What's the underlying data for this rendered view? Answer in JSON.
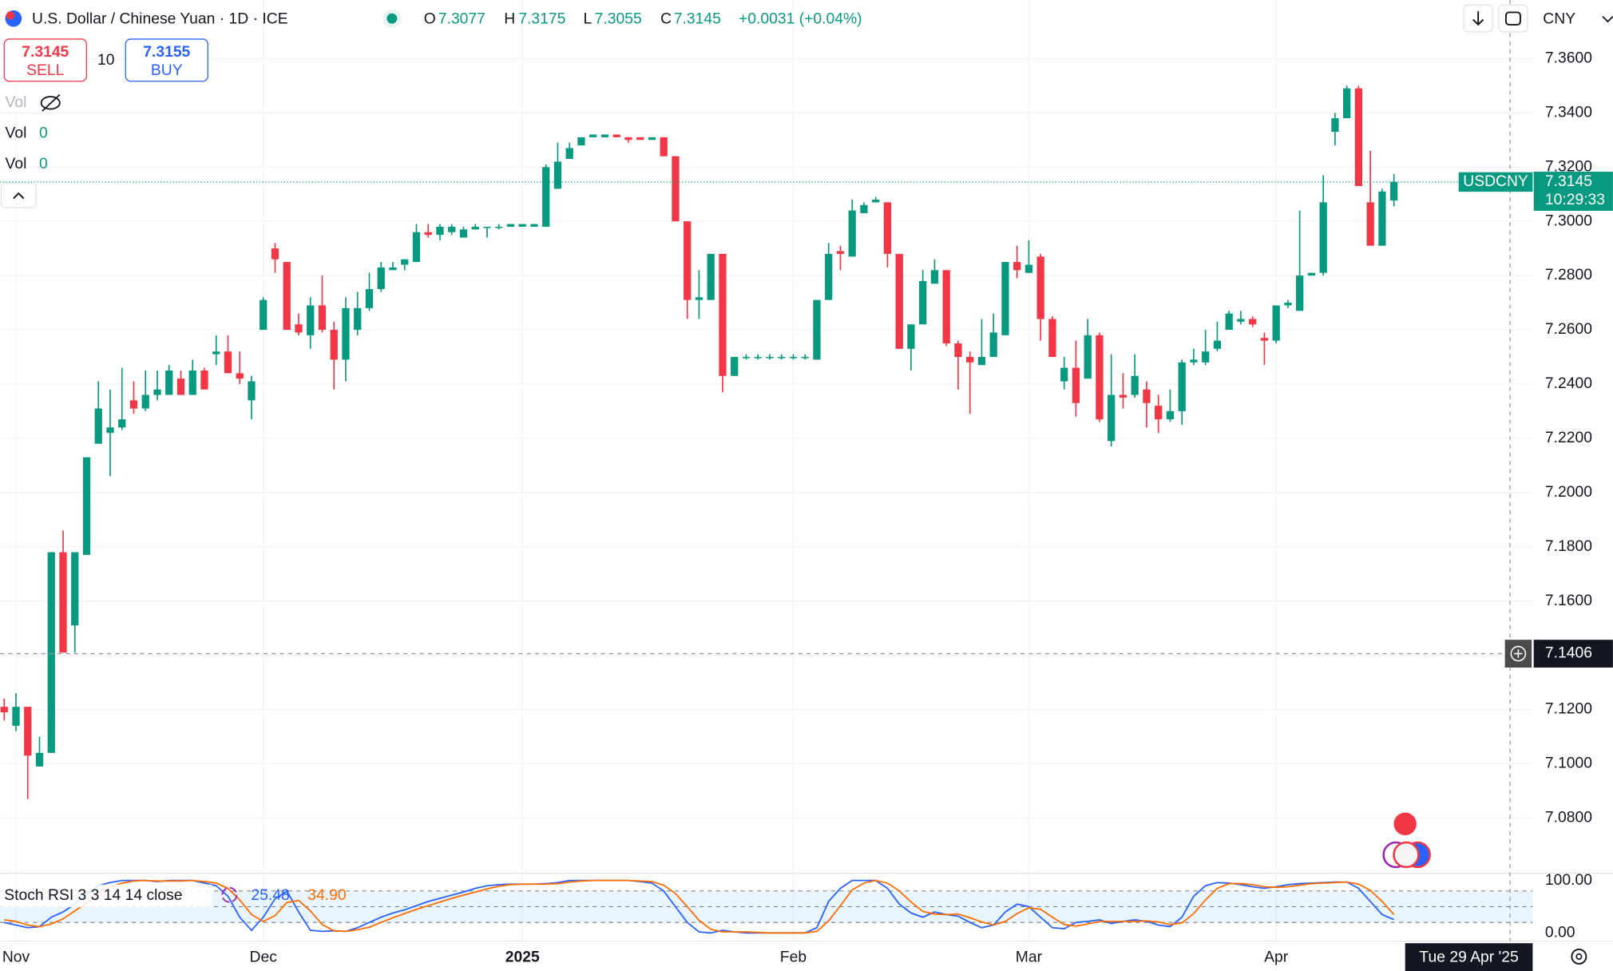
{
  "header": {
    "title": "U.S. Dollar / Chinese Yuan · 1D · ICE",
    "ohlc_labels": [
      "O",
      "H",
      "L",
      "C"
    ],
    "change": "+0.0031 (+0.04%)",
    "currency": "CNY",
    "sell_label": "SELL",
    "buy_label": "BUY",
    "buy_price": 7.3155,
    "quantity": 10,
    "symbol": "USDCNY",
    "countdown": "10:29:33",
    "crosshair_price": 7.1406,
    "crosshair_date": "Tue 29 Apr '25",
    "indicators": [
      {
        "name": "Vol"
      },
      {
        "name": "Vol",
        "value": 0
      },
      {
        "name": "Vol",
        "value": 0
      }
    ]
  },
  "chart_data": [
    {
      "type": "candlestick",
      "up_color": "#089981",
      "down_color": "#f23645",
      "grid": true,
      "categories": [
        null,
        "Nov",
        null,
        null,
        null,
        null,
        null,
        null,
        null,
        null,
        null,
        null,
        null,
        null,
        null,
        null,
        null,
        null,
        null,
        null,
        null,
        null,
        "Dec",
        null,
        null,
        null,
        null,
        null,
        null,
        null,
        null,
        null,
        null,
        null,
        null,
        null,
        null,
        null,
        null,
        null,
        null,
        null,
        null,
        null,
        "2025",
        null,
        null,
        null,
        null,
        null,
        null,
        null,
        null,
        null,
        null,
        null,
        null,
        null,
        null,
        null,
        null,
        null,
        null,
        null,
        null,
        null,
        null,
        "Feb",
        null,
        null,
        null,
        null,
        null,
        null,
        null,
        null,
        null,
        null,
        null,
        null,
        null,
        null,
        null,
        null,
        null,
        null,
        null,
        "Mar",
        null,
        null,
        null,
        null,
        null,
        null,
        null,
        null,
        null,
        null,
        null,
        null,
        null,
        null,
        null,
        null,
        null,
        null,
        null,
        null,
        "Apr",
        null,
        null,
        null,
        null,
        null,
        null,
        null,
        null,
        null,
        null
      ],
      "ohlc": [
        [
          7.121,
          7.124,
          7.116,
          7.119
        ],
        [
          7.114,
          7.126,
          7.112,
          7.121
        ],
        [
          7.121,
          7.121,
          7.087,
          7.103
        ],
        [
          7.099,
          7.11,
          7.099,
          7.104
        ],
        [
          7.104,
          7.178,
          7.104,
          7.178
        ],
        [
          7.178,
          7.186,
          7.141,
          7.141
        ],
        [
          7.151,
          7.178,
          7.141,
          7.178
        ],
        [
          7.177,
          7.213,
          7.177,
          7.213
        ],
        [
          7.218,
          7.241,
          7.218,
          7.231
        ],
        [
          7.222,
          7.238,
          7.206,
          7.224
        ],
        [
          7.224,
          7.246,
          7.223,
          7.227
        ],
        [
          7.234,
          7.241,
          7.229,
          7.231
        ],
        [
          7.231,
          7.245,
          7.23,
          7.236
        ],
        [
          7.236,
          7.245,
          7.234,
          7.238
        ],
        [
          7.236,
          7.247,
          7.236,
          7.245
        ],
        [
          7.242,
          7.245,
          7.236,
          7.236
        ],
        [
          7.236,
          7.249,
          7.236,
          7.245
        ],
        [
          7.245,
          7.246,
          7.238,
          7.238
        ],
        [
          7.251,
          7.258,
          7.247,
          7.252
        ],
        [
          7.252,
          7.258,
          7.244,
          7.244
        ],
        [
          7.244,
          7.252,
          7.24,
          7.242
        ],
        [
          7.234,
          7.243,
          7.227,
          7.241
        ],
        [
          7.26,
          7.272,
          7.26,
          7.271
        ],
        [
          7.29,
          7.292,
          7.281,
          7.286
        ],
        [
          7.285,
          7.285,
          7.26,
          7.26
        ],
        [
          7.262,
          7.266,
          7.258,
          7.259
        ],
        [
          7.258,
          7.272,
          7.253,
          7.269
        ],
        [
          7.269,
          7.28,
          7.259,
          7.26
        ],
        [
          7.26,
          7.263,
          7.238,
          7.249
        ],
        [
          7.249,
          7.272,
          7.241,
          7.268
        ],
        [
          7.26,
          7.274,
          7.258,
          7.268
        ],
        [
          7.268,
          7.281,
          7.267,
          7.275
        ],
        [
          7.275,
          7.285,
          7.274,
          7.283
        ],
        [
          7.282,
          7.285,
          7.282,
          7.283
        ],
        [
          7.284,
          7.286,
          7.282,
          7.286
        ],
        [
          7.285,
          7.299,
          7.285,
          7.296
        ],
        [
          7.296,
          7.299,
          7.294,
          7.295
        ],
        [
          7.295,
          7.299,
          7.293,
          7.298
        ],
        [
          7.296,
          7.299,
          7.295,
          7.298
        ],
        [
          7.294,
          7.298,
          7.294,
          7.297
        ],
        [
          7.297,
          7.299,
          7.297,
          7.298
        ],
        [
          7.298,
          7.298,
          7.294,
          7.298
        ],
        [
          7.298,
          7.299,
          7.297,
          7.298
        ],
        [
          7.298,
          7.299,
          7.298,
          7.299
        ],
        [
          7.298,
          7.299,
          7.298,
          7.299
        ],
        [
          7.298,
          7.299,
          7.298,
          7.299
        ],
        [
          7.298,
          7.321,
          7.298,
          7.32
        ],
        [
          7.312,
          7.329,
          7.312,
          7.322
        ],
        [
          7.323,
          7.329,
          7.323,
          7.327
        ],
        [
          7.328,
          7.331,
          7.328,
          7.331
        ],
        [
          7.331,
          7.332,
          7.331,
          7.332
        ],
        [
          7.331,
          7.332,
          7.331,
          7.332
        ],
        [
          7.332,
          7.332,
          7.331,
          7.331
        ],
        [
          7.331,
          7.331,
          7.329,
          7.33
        ],
        [
          7.331,
          7.331,
          7.33,
          7.33
        ],
        [
          7.33,
          7.331,
          7.33,
          7.331
        ],
        [
          7.331,
          7.331,
          7.324,
          7.324
        ],
        [
          7.324,
          7.324,
          7.3,
          7.3
        ],
        [
          7.3,
          7.3,
          7.264,
          7.271
        ],
        [
          7.271,
          7.282,
          7.264,
          7.272
        ],
        [
          7.271,
          7.288,
          7.271,
          7.288
        ],
        [
          7.288,
          7.288,
          7.237,
          7.243
        ],
        [
          7.243,
          7.25,
          7.243,
          7.25
        ],
        [
          7.25,
          7.251,
          7.249,
          7.25
        ],
        [
          7.25,
          7.251,
          7.249,
          7.25
        ],
        [
          7.25,
          7.251,
          7.249,
          7.25
        ],
        [
          7.25,
          7.251,
          7.249,
          7.25
        ],
        [
          7.25,
          7.251,
          7.249,
          7.25
        ],
        [
          7.25,
          7.251,
          7.249,
          7.25
        ],
        [
          7.249,
          7.271,
          7.249,
          7.271
        ],
        [
          7.271,
          7.292,
          7.271,
          7.288
        ],
        [
          7.289,
          7.291,
          7.282,
          7.288
        ],
        [
          7.287,
          7.308,
          7.287,
          7.304
        ],
        [
          7.303,
          7.307,
          7.303,
          7.306
        ],
        [
          7.307,
          7.309,
          7.307,
          7.308
        ],
        [
          7.307,
          7.307,
          7.283,
          7.288
        ],
        [
          7.288,
          7.288,
          7.253,
          7.253
        ],
        [
          7.253,
          7.262,
          7.245,
          7.262
        ],
        [
          7.262,
          7.282,
          7.262,
          7.278
        ],
        [
          7.277,
          7.286,
          7.277,
          7.282
        ],
        [
          7.282,
          7.282,
          7.254,
          7.255
        ],
        [
          7.255,
          7.256,
          7.238,
          7.25
        ],
        [
          7.25,
          7.252,
          7.229,
          7.248
        ],
        [
          7.247,
          7.264,
          7.247,
          7.25
        ],
        [
          7.25,
          7.266,
          7.25,
          7.259
        ],
        [
          7.258,
          7.285,
          7.258,
          7.285
        ],
        [
          7.285,
          7.291,
          7.279,
          7.282
        ],
        [
          7.281,
          7.293,
          7.281,
          7.284
        ],
        [
          7.287,
          7.288,
          7.256,
          7.264
        ],
        [
          7.264,
          7.265,
          7.25,
          7.25
        ],
        [
          7.241,
          7.25,
          7.238,
          7.246
        ],
        [
          7.246,
          7.256,
          7.228,
          7.233
        ],
        [
          7.242,
          7.264,
          7.242,
          7.258
        ],
        [
          7.258,
          7.259,
          7.226,
          7.227
        ],
        [
          7.219,
          7.251,
          7.217,
          7.236
        ],
        [
          7.236,
          7.244,
          7.231,
          7.235
        ],
        [
          7.236,
          7.251,
          7.235,
          7.243
        ],
        [
          7.238,
          7.241,
          7.224,
          7.233
        ],
        [
          7.232,
          7.236,
          7.222,
          7.227
        ],
        [
          7.227,
          7.238,
          7.226,
          7.23
        ],
        [
          7.23,
          7.249,
          7.225,
          7.248
        ],
        [
          7.248,
          7.253,
          7.247,
          7.249
        ],
        [
          7.248,
          7.26,
          7.247,
          7.252
        ],
        [
          7.253,
          7.263,
          7.252,
          7.256
        ],
        [
          7.26,
          7.267,
          7.26,
          7.266
        ],
        [
          7.263,
          7.267,
          7.262,
          7.264
        ],
        [
          7.264,
          7.265,
          7.261,
          7.262
        ],
        [
          7.257,
          7.259,
          7.247,
          7.256
        ],
        [
          7.256,
          7.269,
          7.255,
          7.269
        ],
        [
          7.269,
          7.271,
          7.268,
          7.27
        ],
        [
          7.267,
          7.304,
          7.267,
          7.28
        ],
        [
          7.28,
          7.281,
          7.28,
          7.281
        ],
        [
          7.281,
          7.317,
          7.28,
          7.307
        ],
        [
          7.333,
          7.34,
          7.328,
          7.338
        ],
        [
          7.338,
          7.35,
          7.338,
          7.349
        ],
        [
          7.349,
          7.35,
          7.313,
          7.313
        ],
        [
          7.307,
          7.326,
          7.291,
          7.291
        ],
        [
          7.291,
          7.312,
          7.291,
          7.311
        ],
        [
          7.3077,
          7.3175,
          7.3055,
          7.3145
        ]
      ],
      "ylim": [
        7.06,
        7.3816
      ],
      "yticks": [
        {
          "value": 7.08,
          "label": "7.0800"
        },
        {
          "value": 7.1,
          "label": "7.1000"
        },
        {
          "value": 7.12,
          "label": "7.1200"
        },
        {
          "value": 7.14,
          "label": "7.1400"
        },
        {
          "value": 7.16,
          "label": "7.1600"
        },
        {
          "value": 7.18,
          "label": "7.1800"
        },
        {
          "value": 7.2,
          "label": "7.2000"
        },
        {
          "value": 7.22,
          "label": "7.2200"
        },
        {
          "value": 7.24,
          "label": "7.2400"
        },
        {
          "value": 7.26,
          "label": "7.2600"
        },
        {
          "value": 7.28,
          "label": "7.2800"
        },
        {
          "value": 7.3,
          "label": "7.3000"
        },
        {
          "value": 7.32,
          "label": "7.3200"
        },
        {
          "value": 7.34,
          "label": "7.3400"
        },
        {
          "value": 7.36,
          "label": "7.3600"
        }
      ]
    },
    {
      "type": "line",
      "title": "Stoch RSI 3 3 14 14 close",
      "bands": [
        80,
        50,
        20
      ],
      "band_color": "#2196f3",
      "series": [
        {
          "color": "#2962ff",
          "values": [
            20,
            15,
            10,
            12,
            30,
            40,
            55,
            75,
            90,
            96,
            100,
            100,
            100,
            98,
            100,
            100,
            100,
            95,
            90,
            70,
            30,
            5,
            30,
            65,
            80,
            40,
            5,
            3,
            4,
            3,
            10,
            20,
            30,
            38,
            44,
            52,
            60,
            66,
            72,
            78,
            85,
            90,
            92,
            93,
            93,
            93,
            94,
            96,
            100,
            100,
            100,
            100,
            100,
            100,
            98,
            95,
            80,
            50,
            20,
            2,
            0,
            5,
            2,
            0,
            0,
            0,
            0,
            0,
            0,
            10,
            60,
            85,
            100,
            100,
            100,
            85,
            55,
            38,
            30,
            40,
            35,
            32,
            20,
            10,
            15,
            40,
            55,
            50,
            30,
            10,
            8,
            20,
            22,
            25,
            18,
            22,
            25,
            22,
            15,
            12,
            30,
            70,
            90,
            96,
            95,
            92,
            88,
            85,
            88,
            92,
            94,
            95,
            96,
            97,
            97,
            85,
            60,
            35,
            25.48
          ]
        },
        {
          "color": "#ff6d00",
          "values": [
            25,
            22,
            15,
            12,
            17,
            27,
            42,
            57,
            73,
            87,
            95,
            99,
            100,
            99,
            99,
            99,
            100,
            98,
            95,
            85,
            63,
            35,
            22,
            33,
            58,
            62,
            42,
            16,
            4,
            3,
            6,
            11,
            20,
            29,
            37,
            45,
            52,
            59,
            66,
            72,
            78,
            84,
            89,
            92,
            93,
            93,
            93,
            94,
            97,
            99,
            100,
            100,
            100,
            100,
            99,
            98,
            91,
            75,
            50,
            24,
            7,
            2,
            2,
            2,
            1,
            0,
            0,
            0,
            0,
            3,
            23,
            52,
            82,
            95,
            100,
            95,
            80,
            59,
            41,
            36,
            35,
            36,
            29,
            21,
            15,
            22,
            37,
            48,
            45,
            30,
            16,
            13,
            17,
            22,
            22,
            22,
            22,
            23,
            21,
            16,
            19,
            37,
            63,
            85,
            94,
            94,
            92,
            88,
            87,
            88,
            91,
            94,
            95,
            96,
            97,
            93,
            81,
            60,
            34.9
          ]
        }
      ],
      "readout": [
        25.48,
        {
          "value": 34.9,
          "label": "34.90"
        }
      ],
      "ylim": [
        0,
        100
      ],
      "yticks": [
        {
          "value": 100,
          "label": "100.00"
        },
        {
          "value": 0,
          "label": "0.00"
        }
      ]
    }
  ]
}
